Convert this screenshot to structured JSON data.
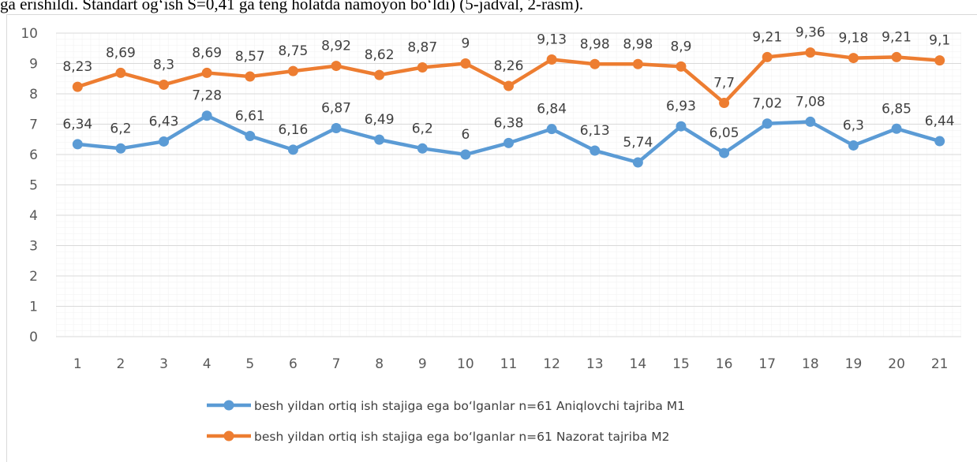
{
  "caption": "ga erishildi. Standart og‘ish S=0,41 ga teng holatda namoyon bo‘ldi) (5-jadval, 2-rasm).",
  "chart_data": {
    "type": "line",
    "categories": [
      "1",
      "2",
      "3",
      "4",
      "5",
      "6",
      "7",
      "8",
      "9",
      "10",
      "11",
      "12",
      "13",
      "14",
      "15",
      "16",
      "17",
      "18",
      "19",
      "20",
      "21"
    ],
    "series": [
      {
        "name": "besh yildan ortiq ish stajiga ega bo‘lganlar n=61 Aniqlovchi tajriba M1",
        "color": "#5b9bd5",
        "values": [
          6.34,
          6.2,
          6.43,
          7.28,
          6.61,
          6.16,
          6.87,
          6.49,
          6.2,
          6,
          6.38,
          6.84,
          6.13,
          5.74,
          6.93,
          6.05,
          7.02,
          7.08,
          6.3,
          6.85,
          6.44
        ],
        "value_labels": [
          "6,34",
          "6,2",
          "6,43",
          "7,28",
          "6,61",
          "6,16",
          "6,87",
          "6,49",
          "6,2",
          "6",
          "6,38",
          "6,84",
          "6,13",
          "5,74",
          "6,93",
          "6,05",
          "7,02",
          "7,08",
          "6,3",
          "6,85",
          "6,44"
        ]
      },
      {
        "name": "besh yildan ortiq ish stajiga ega bo‘lganlar n=61 Nazorat tajriba M2",
        "color": "#ed7d31",
        "values": [
          8.23,
          8.69,
          8.3,
          8.69,
          8.57,
          8.75,
          8.92,
          8.62,
          8.87,
          9,
          8.26,
          9.13,
          8.98,
          8.98,
          8.9,
          7.7,
          9.21,
          9.36,
          9.18,
          9.21,
          9.1
        ],
        "value_labels": [
          "8,23",
          "8,69",
          "8,3",
          "8,69",
          "8,57",
          "8,75",
          "8,92",
          "8,62",
          "8,87",
          "9",
          "8,26",
          "9,13",
          "8,98",
          "8,98",
          "8,9",
          "7,7",
          "9,21",
          "9,36",
          "9,18",
          "9,21",
          "9,1"
        ]
      }
    ],
    "ylim": [
      0,
      10
    ],
    "yticks": [
      0,
      1,
      2,
      3,
      4,
      5,
      6,
      7,
      8,
      9,
      10
    ],
    "grid": true,
    "legend": "bottom"
  }
}
